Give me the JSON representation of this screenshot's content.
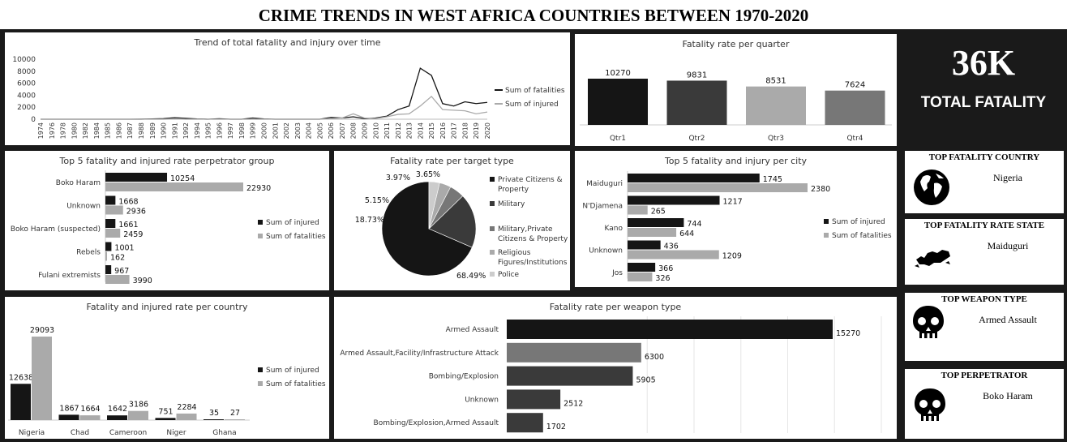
{
  "dashboard_title": "CRIME TRENDS IN WEST AFRICA COUNTRIES BETWEEN 1970-2020",
  "kpi": {
    "value": "36K",
    "label": "TOTAL FATALITY"
  },
  "cards": [
    {
      "title": "TOP FATALITY COUNTRY",
      "value": "Nigeria",
      "icon": "globe-icon"
    },
    {
      "title": "TOP FATALITY RATE STATE",
      "value": "Maiduguri",
      "icon": "map-icon"
    },
    {
      "title": "TOP WEAPON TYPE",
      "value": "Armed Assault",
      "icon": "skull-icon"
    },
    {
      "title": "TOP PERPETRATOR",
      "value": "Boko Haram",
      "icon": "skull-icon"
    }
  ],
  "colors": {
    "black": "#151515",
    "dark": "#3a3a3a",
    "mid": "#777777",
    "light": "#aaaaaa",
    "lighter": "#cccccc"
  },
  "chart_data": [
    {
      "id": "trend",
      "type": "line",
      "title": "Trend of total fatality and injury over time",
      "x": [
        "1974",
        "1976",
        "1978",
        "1980",
        "1982",
        "1984",
        "1985",
        "1986",
        "1987",
        "1988",
        "1989",
        "1990",
        "1991",
        "1992",
        "1994",
        "1995",
        "1996",
        "1997",
        "1998",
        "1999",
        "2000",
        "2001",
        "2002",
        "2003",
        "2004",
        "2005",
        "2006",
        "2007",
        "2008",
        "2009",
        "2010",
        "2011",
        "2012",
        "2013",
        "2014",
        "2015",
        "2016",
        "2017",
        "2018",
        "2019",
        "2020"
      ],
      "series": [
        {
          "name": "Sum of fatalities",
          "values": [
            0,
            0,
            0,
            0,
            0,
            0,
            0,
            0,
            0,
            10,
            50,
            100,
            250,
            150,
            50,
            0,
            80,
            0,
            0,
            200,
            50,
            0,
            0,
            0,
            0,
            0,
            300,
            200,
            400,
            100,
            200,
            500,
            1600,
            2200,
            8500,
            7300,
            2600,
            2200,
            2900,
            2600,
            2800
          ]
        },
        {
          "name": "Sum of injured",
          "values": [
            0,
            0,
            0,
            0,
            0,
            0,
            0,
            0,
            0,
            0,
            0,
            0,
            50,
            0,
            0,
            0,
            0,
            0,
            0,
            0,
            0,
            0,
            0,
            0,
            0,
            0,
            100,
            200,
            900,
            200,
            100,
            400,
            800,
            900,
            2200,
            3800,
            1600,
            1500,
            1400,
            900,
            1200
          ]
        }
      ],
      "ylim": [
        0,
        10000
      ],
      "yticks": [
        0,
        2000,
        4000,
        6000,
        8000,
        10000
      ]
    },
    {
      "id": "quarter",
      "type": "bar",
      "title": "Fatality rate per quarter",
      "categories": [
        "Qtr1",
        "Qtr2",
        "Qtr3",
        "Qtr4"
      ],
      "values": [
        10270,
        9831,
        8531,
        7624
      ]
    },
    {
      "id": "perpetrator",
      "type": "bar",
      "title": "Top 5 fatality and injured rate perpetrator group",
      "categories": [
        "Boko Haram",
        "Unknown",
        "Boko Haram (suspected)",
        "Rebels",
        "Fulani extremists"
      ],
      "series": [
        {
          "name": "Sum of injured",
          "values": [
            10254,
            1668,
            1661,
            1001,
            967
          ]
        },
        {
          "name": "Sum of fatalities",
          "values": [
            22930,
            2936,
            2459,
            162,
            3990
          ]
        }
      ]
    },
    {
      "id": "target",
      "type": "pie",
      "title": "Fatality rate per target type",
      "labels": [
        "Private Citizens & Property",
        "Military",
        "Military,Private Citizens & Property",
        "Religious Figures/Institutions",
        "Police"
      ],
      "values": [
        68.49,
        18.73,
        5.15,
        3.97,
        3.65
      ],
      "value_labels": [
        "68.49%",
        "18.73%",
        "5.15%",
        "3.97%",
        "3.65%"
      ]
    },
    {
      "id": "city",
      "type": "bar",
      "title": "Top 5 fatality and injury per city",
      "categories": [
        "Maiduguri",
        "N'Djamena",
        "Kano",
        "Unknown",
        "Jos"
      ],
      "series": [
        {
          "name": "Sum of injured",
          "values": [
            1745,
            1217,
            744,
            436,
            366
          ]
        },
        {
          "name": "Sum of fatalities",
          "values": [
            2380,
            265,
            644,
            1209,
            326
          ]
        }
      ]
    },
    {
      "id": "country",
      "type": "bar",
      "title": "Fatality and injured rate per country",
      "categories": [
        "Nigeria",
        "Chad",
        "Cameroon",
        "Niger",
        "Ghana"
      ],
      "series": [
        {
          "name": "Sum of injured",
          "values": [
            12638,
            1867,
            1642,
            751,
            35
          ]
        },
        {
          "name": "Sum of fatalities",
          "values": [
            29093,
            1664,
            3186,
            2284,
            27
          ]
        }
      ]
    },
    {
      "id": "weapon",
      "type": "bar",
      "title": "Fatality rate per weapon type",
      "categories": [
        "Armed Assault",
        "Armed Assault,Facility/Infrastructure Attack",
        "Bombing/Explosion",
        "Unknown",
        "Bombing/Explosion,Armed Assault"
      ],
      "values": [
        15270,
        6300,
        5905,
        2512,
        1702
      ]
    }
  ]
}
